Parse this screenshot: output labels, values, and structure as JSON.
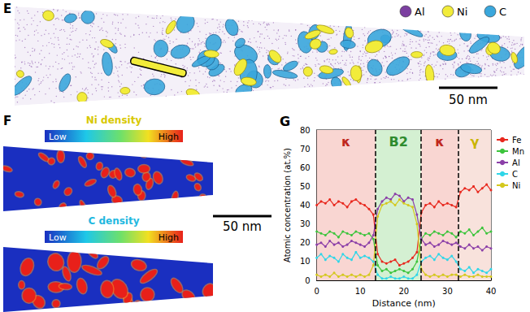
{
  "panels": {
    "E": {
      "label": "E",
      "legend": [
        {
          "name": "Al",
          "color": "#7b3fa0"
        },
        {
          "name": "Ni",
          "color": "#f2ec3a"
        },
        {
          "name": "C",
          "color": "#3aa7dc"
        }
      ],
      "scale_bar": "50 nm"
    },
    "F": {
      "label": "F",
      "maps": [
        {
          "title": "Ni density",
          "color": "#d8c800",
          "low": "Low",
          "high": "High"
        },
        {
          "title": "C density",
          "color": "#1fb8e0",
          "low": "Low",
          "high": "High"
        }
      ],
      "scale_bar": "50 nm"
    }
  },
  "chart_data": {
    "type": "line",
    "panel_label": "G",
    "xlabel": "Distance (nm)",
    "ylabel": "Atomic concentration (at.%)",
    "xlim": [
      0,
      40
    ],
    "xticks": [
      0,
      10,
      20,
      30,
      40
    ],
    "ylim": [
      0,
      80
    ],
    "yticks": [
      0,
      10,
      20,
      30,
      40,
      50,
      60,
      70,
      80
    ],
    "grid": false,
    "legend": "right",
    "marker": "circle",
    "regions": [
      {
        "label": "κ",
        "start": 0,
        "end": 13.5,
        "color": "#f9d6d2",
        "label_color": "#c0281e"
      },
      {
        "label": "B2",
        "start": 13.5,
        "end": 24,
        "color": "#d4f0d2",
        "label_color": "#2e8b2e"
      },
      {
        "label": "κ",
        "start": 24,
        "end": 32.5,
        "color": "#f9d6d2",
        "label_color": "#c0281e"
      },
      {
        "label": "γ",
        "start": 32.5,
        "end": 40,
        "color": "#f8e2dc",
        "label_color": "#c8b400"
      }
    ],
    "x": [
      0,
      1,
      2,
      3,
      4,
      5,
      6,
      7,
      8,
      9,
      10,
      11,
      12,
      13,
      14,
      15,
      16,
      17,
      18,
      19,
      20,
      21,
      22,
      23,
      24,
      25,
      26,
      27,
      28,
      29,
      30,
      31,
      32,
      33,
      34,
      35,
      36,
      37,
      38,
      39,
      40
    ],
    "series": [
      {
        "name": "Fe",
        "color": "#e8281e",
        "values": [
          40,
          42,
          41,
          43,
          40,
          42,
          41,
          39,
          42,
          43,
          41,
          40,
          38,
          35,
          14,
          10,
          9,
          10,
          11,
          8,
          9,
          10,
          12,
          15,
          36,
          40,
          41,
          39,
          42,
          40,
          41,
          40,
          39,
          47,
          49,
          48,
          50,
          47,
          49,
          51,
          48
        ]
      },
      {
        "name": "Mn",
        "color": "#3cc43c",
        "values": [
          26,
          25,
          24,
          26,
          25,
          23,
          26,
          25,
          24,
          26,
          25,
          24,
          25,
          22,
          8,
          5,
          6,
          4,
          5,
          6,
          5,
          4,
          6,
          10,
          22,
          25,
          24,
          26,
          25,
          24,
          26,
          25,
          23,
          26,
          25,
          27,
          24,
          26,
          28,
          25,
          26
        ]
      },
      {
        "name": "Al",
        "color": "#8b3fa8",
        "values": [
          19,
          20,
          18,
          21,
          19,
          20,
          18,
          19,
          21,
          20,
          19,
          18,
          20,
          24,
          38,
          42,
          44,
          43,
          46,
          45,
          42,
          44,
          43,
          35,
          22,
          19,
          20,
          18,
          19,
          21,
          20,
          19,
          20,
          18,
          17,
          19,
          17,
          18,
          16,
          18,
          17
        ]
      },
      {
        "name": "C",
        "color": "#2fd6e8",
        "values": [
          12,
          14,
          11,
          13,
          12,
          10,
          14,
          12,
          11,
          15,
          12,
          13,
          12,
          10,
          3,
          1,
          1,
          2,
          1,
          1,
          2,
          1,
          1,
          3,
          10,
          12,
          13,
          11,
          14,
          12,
          11,
          13,
          10,
          6,
          5,
          7,
          4,
          6,
          5,
          4,
          6
        ]
      },
      {
        "name": "Ni",
        "color": "#d4c81e",
        "values": [
          3,
          2,
          3,
          2,
          4,
          2,
          3,
          2,
          3,
          2,
          3,
          2,
          3,
          8,
          34,
          40,
          41,
          42,
          40,
          43,
          41,
          40,
          39,
          30,
          6,
          3,
          2,
          3,
          2,
          3,
          2,
          3,
          3,
          2,
          3,
          2,
          2,
          3,
          2,
          2,
          2
        ]
      }
    ]
  }
}
